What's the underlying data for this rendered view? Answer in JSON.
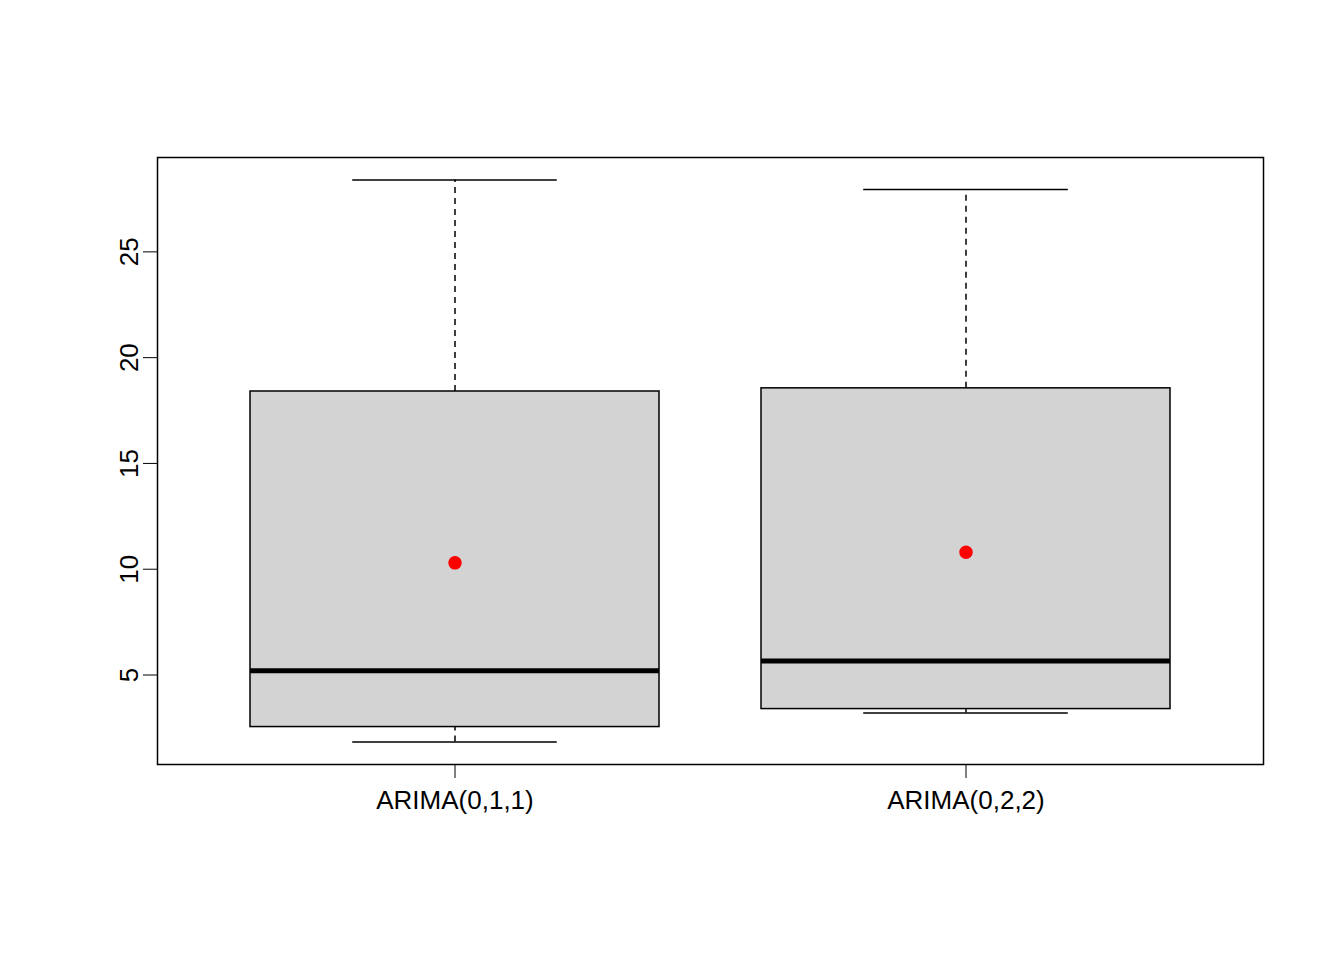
{
  "chart_data": {
    "type": "boxplot",
    "categories": [
      "ARIMA(0,1,1)",
      "ARIMA(0,2,2)"
    ],
    "series": [
      {
        "type": "boxplot",
        "color": "#d3d3d3",
        "min": [
          1.83,
          3.2
        ],
        "q1": [
          2.54,
          3.39
        ],
        "median": [
          5.2,
          5.66
        ],
        "q3": [
          18.4,
          18.55
        ],
        "max": [
          28.4,
          27.95
        ]
      },
      {
        "type": "scatter",
        "color": "#ff0000",
        "marker": "circle",
        "values": [
          10.3,
          10.8
        ]
      }
    ],
    "ylim": [
      0.77,
      29.46
    ],
    "yticks": [
      5,
      10,
      15,
      20,
      25
    ],
    "grid": false
  }
}
